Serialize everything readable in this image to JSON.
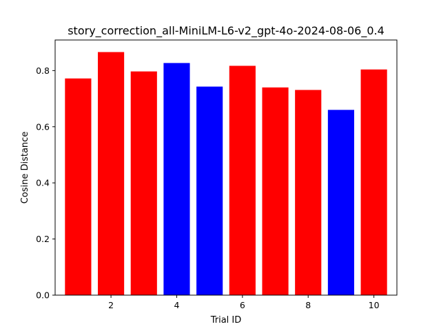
{
  "chart_data": {
    "type": "bar",
    "title": "story_correction_all-MiniLM-L6-v2_gpt-4o-2024-08-06_0.4",
    "xlabel": "Trial ID",
    "ylabel": "Cosine Distance",
    "x": [
      1,
      2,
      3,
      4,
      5,
      6,
      7,
      8,
      9,
      10
    ],
    "values": [
      0.772,
      0.866,
      0.797,
      0.827,
      0.743,
      0.817,
      0.74,
      0.731,
      0.66,
      0.804
    ],
    "bar_colors": [
      "#ff0000",
      "#ff0000",
      "#ff0000",
      "#0000ff",
      "#0000ff",
      "#ff0000",
      "#ff0000",
      "#ff0000",
      "#0000ff",
      "#ff0000"
    ],
    "xlim": [
      0.3,
      10.7
    ],
    "ylim": [
      0,
      0.909
    ],
    "xticks": [
      2,
      4,
      6,
      8,
      10
    ],
    "xtick_labels": [
      "2",
      "4",
      "6",
      "8",
      "10"
    ],
    "yticks": [
      0.0,
      0.2,
      0.4,
      0.6,
      0.8
    ],
    "ytick_labels": [
      "0.0",
      "0.2",
      "0.4",
      "0.6",
      "0.8"
    ],
    "grid": false,
    "legend": "none"
  }
}
